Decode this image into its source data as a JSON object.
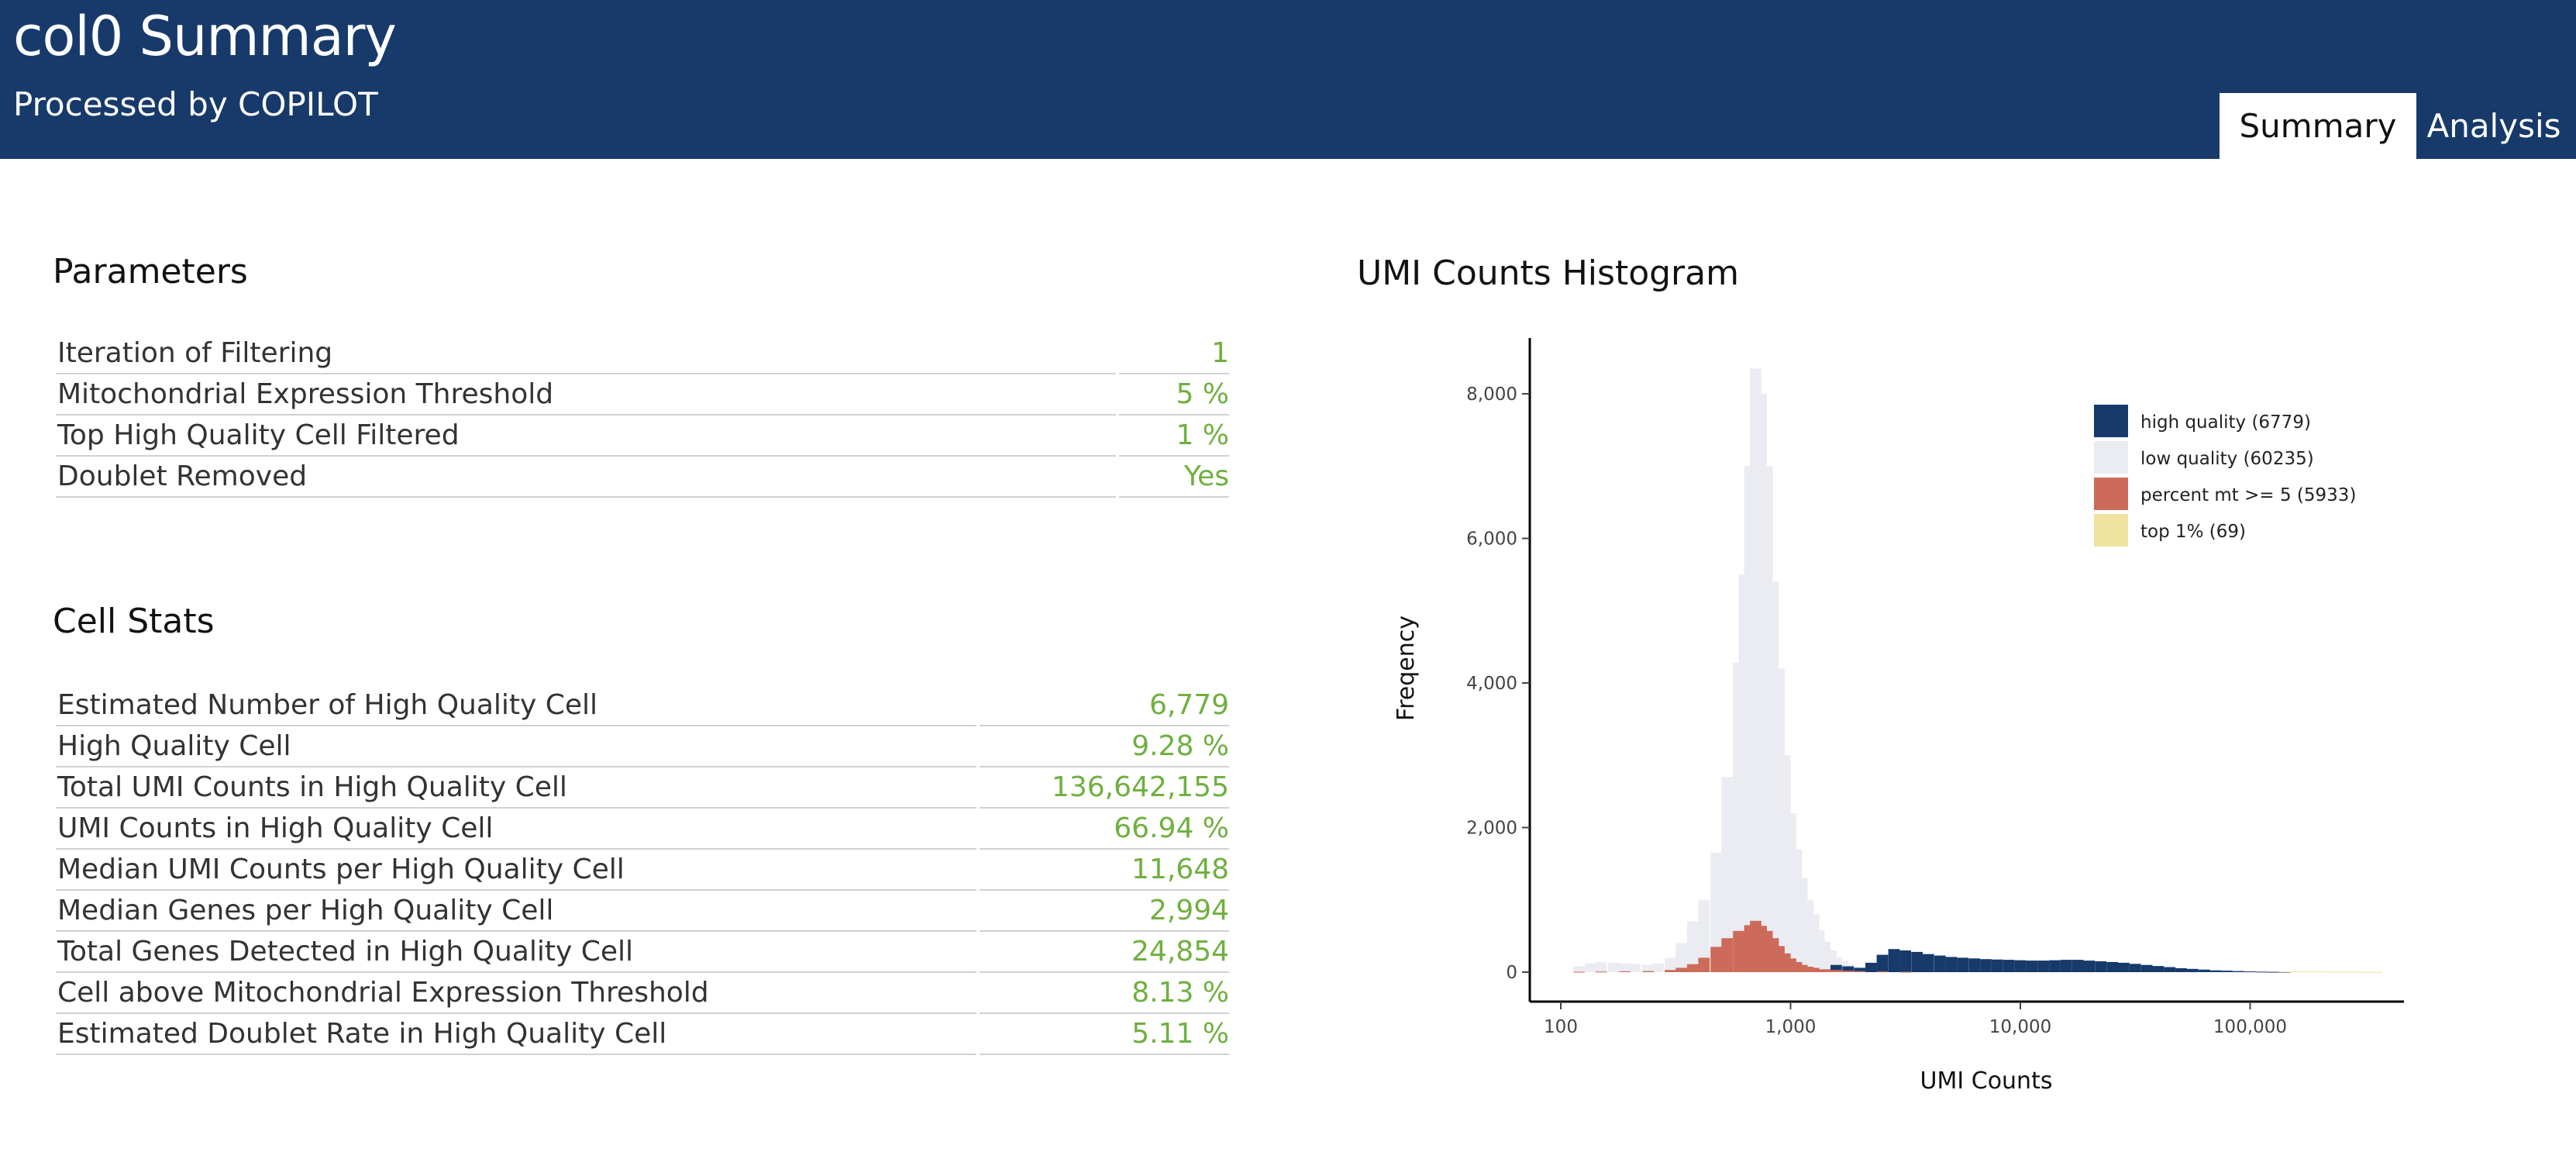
{
  "header": {
    "title": "col0 Summary",
    "subtitle": "Processed by COPILOT",
    "tabs": [
      {
        "label": "Summary"
      },
      {
        "label": "Analysis"
      }
    ]
  },
  "parameters": {
    "title": "Parameters",
    "rows": [
      {
        "label": "Iteration of Filtering",
        "value": "1"
      },
      {
        "label": "Mitochondrial Expression Threshold",
        "value": "5 %"
      },
      {
        "label": "Top High Quality Cell Filtered",
        "value": "1 %"
      },
      {
        "label": "Doublet Removed",
        "value": "Yes"
      }
    ]
  },
  "cell_stats": {
    "title": "Cell Stats",
    "rows": [
      {
        "label": "Estimated Number of High Quality Cell",
        "value": "6,779"
      },
      {
        "label": "High Quality Cell",
        "value": "9.28 %"
      },
      {
        "label": "Total UMI Counts in High Quality Cell",
        "value": "136,642,155"
      },
      {
        "label": "UMI Counts in High Quality Cell",
        "value": "66.94 %"
      },
      {
        "label": "Median UMI Counts per High Quality Cell",
        "value": "11,648"
      },
      {
        "label": "Median Genes per High Quality Cell",
        "value": "2,994"
      },
      {
        "label": "Total Genes Detected in High Quality Cell",
        "value": "24,854"
      },
      {
        "label": "Cell above Mitochondrial Expression Threshold",
        "value": "8.13 %"
      },
      {
        "label": "Estimated Doublet Rate in High Quality Cell",
        "value": "5.11 %"
      }
    ]
  },
  "chart_data": {
    "type": "bar",
    "title": "UMI Counts Histogram",
    "xlabel": "UMI Counts",
    "ylabel": "Freqency",
    "x_scale": "log10",
    "xlim": [
      100,
      400000
    ],
    "ylim": [
      0,
      8800
    ],
    "x_ticks": [
      100,
      1000,
      10000,
      100000
    ],
    "x_tick_labels": [
      "100",
      "1,000",
      "10,000",
      "100,000"
    ],
    "y_ticks": [
      0,
      2000,
      4000,
      6000,
      8000
    ],
    "y_tick_labels": [
      "0",
      "2,000",
      "4,000",
      "6,000",
      "8,000"
    ],
    "legend_position": "top-right",
    "series": [
      {
        "name": "high quality (6779)",
        "color": "#173a6b",
        "points": [
          [
            1580,
            100
          ],
          [
            1780,
            80
          ],
          [
            2000,
            60
          ],
          [
            2240,
            130
          ],
          [
            2510,
            240
          ],
          [
            2820,
            320
          ],
          [
            3160,
            300
          ],
          [
            3550,
            280
          ],
          [
            3980,
            250
          ],
          [
            4470,
            230
          ],
          [
            5010,
            210
          ],
          [
            5620,
            200
          ],
          [
            6310,
            190
          ],
          [
            7080,
            180
          ],
          [
            7940,
            175
          ],
          [
            8910,
            170
          ],
          [
            10000,
            165
          ],
          [
            11220,
            160
          ],
          [
            12590,
            160
          ],
          [
            14130,
            165
          ],
          [
            15850,
            170
          ],
          [
            17780,
            170
          ],
          [
            19950,
            160
          ],
          [
            22390,
            150
          ],
          [
            25120,
            140
          ],
          [
            28180,
            130
          ],
          [
            31620,
            115
          ],
          [
            35480,
            100
          ],
          [
            39810,
            85
          ],
          [
            44670,
            70
          ],
          [
            50120,
            55
          ],
          [
            56230,
            45
          ],
          [
            63100,
            35
          ],
          [
            70790,
            25
          ],
          [
            79430,
            20
          ],
          [
            89130,
            15
          ],
          [
            100000,
            10
          ],
          [
            112200,
            6
          ],
          [
            125900,
            4
          ],
          [
            141300,
            2
          ]
        ]
      },
      {
        "name": "low quality (60235)",
        "color": "#ebecf1",
        "points": [
          [
            120,
            80
          ],
          [
            135,
            120
          ],
          [
            150,
            140
          ],
          [
            170,
            130
          ],
          [
            190,
            120
          ],
          [
            210,
            110
          ],
          [
            240,
            100
          ],
          [
            265,
            120
          ],
          [
            300,
            200
          ],
          [
            335,
            400
          ],
          [
            375,
            700
          ],
          [
            420,
            1000
          ],
          [
            475,
            1650
          ],
          [
            530,
            2700
          ],
          [
            595,
            4280
          ],
          [
            630,
            5500
          ],
          [
            665,
            7000
          ],
          [
            705,
            8350
          ],
          [
            745,
            8000
          ],
          [
            790,
            7000
          ],
          [
            840,
            5400
          ],
          [
            890,
            4200
          ],
          [
            945,
            3000
          ],
          [
            1000,
            2200
          ],
          [
            1060,
            1700
          ],
          [
            1120,
            1300
          ],
          [
            1190,
            1000
          ],
          [
            1260,
            800
          ],
          [
            1330,
            580
          ],
          [
            1410,
            420
          ],
          [
            1500,
            300
          ],
          [
            1580,
            210
          ],
          [
            1680,
            150
          ],
          [
            1780,
            110
          ],
          [
            1890,
            80
          ],
          [
            2000,
            60
          ],
          [
            2240,
            50
          ],
          [
            2510,
            40
          ],
          [
            2820,
            30
          ],
          [
            3160,
            20
          ],
          [
            3550,
            15
          ],
          [
            3980,
            10
          ]
        ]
      },
      {
        "name": "percent mt >= 5 (5933)",
        "color": "#cd6b5b",
        "points": [
          [
            120,
            5
          ],
          [
            150,
            8
          ],
          [
            190,
            12
          ],
          [
            240,
            15
          ],
          [
            300,
            30
          ],
          [
            335,
            60
          ],
          [
            375,
            110
          ],
          [
            420,
            200
          ],
          [
            475,
            350
          ],
          [
            530,
            470
          ],
          [
            595,
            570
          ],
          [
            665,
            650
          ],
          [
            705,
            710
          ],
          [
            745,
            640
          ],
          [
            790,
            570
          ],
          [
            840,
            470
          ],
          [
            890,
            360
          ],
          [
            945,
            260
          ],
          [
            1000,
            190
          ],
          [
            1060,
            140
          ],
          [
            1120,
            100
          ],
          [
            1190,
            75
          ],
          [
            1260,
            60
          ],
          [
            1410,
            40
          ],
          [
            1580,
            30
          ],
          [
            1780,
            20
          ],
          [
            2000,
            15
          ],
          [
            2510,
            10
          ],
          [
            3160,
            5
          ]
        ]
      },
      {
        "name": "top 1% (69)",
        "color": "#f0e3a0",
        "points": [
          [
            141300,
            8
          ],
          [
            158500,
            10
          ],
          [
            177800,
            12
          ],
          [
            199500,
            10
          ],
          [
            223900,
            8
          ],
          [
            251200,
            6
          ],
          [
            281800,
            5
          ],
          [
            316200,
            3
          ],
          [
            354800,
            2
          ]
        ]
      }
    ]
  }
}
